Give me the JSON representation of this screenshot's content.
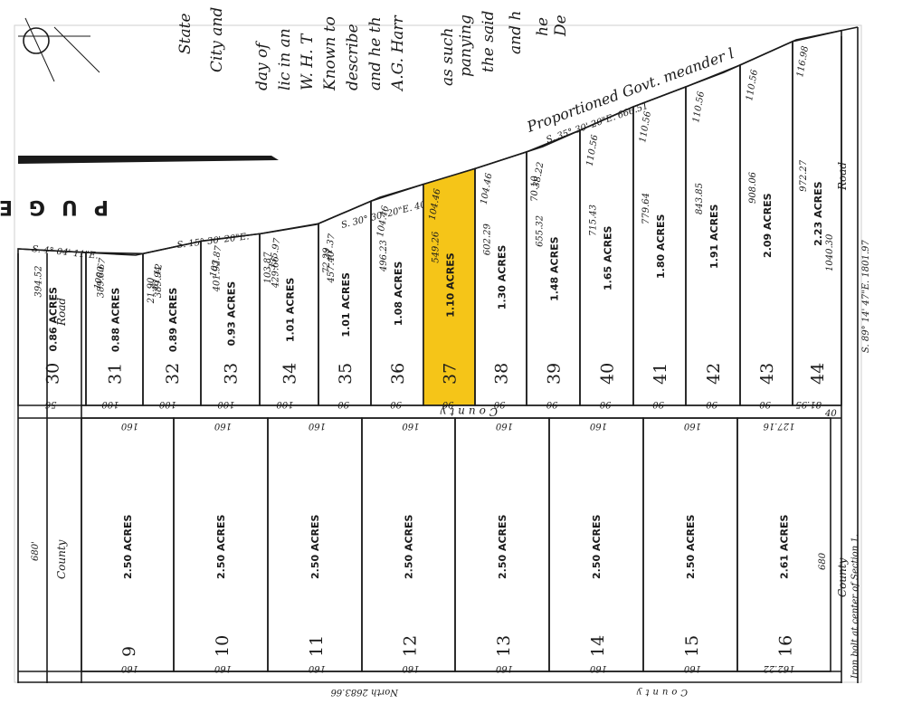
{
  "map": {
    "highlight_color": "#f5c518",
    "ink_color": "#1a1a1a",
    "deed_text_fragments": [
      "State",
      "City and",
      "day of",
      "lic in an",
      "W. H. T",
      "Known to",
      "describe",
      "and he th",
      "A.G. Harr",
      "as such",
      "panying",
      "the said",
      "and h",
      "he",
      "De"
    ],
    "water_label": "PUGET",
    "meander_label": "Proportioned Govt. meander l",
    "bearings": [
      "S. 35° 30' 20\"E.  666.51",
      "S. 30° 30' 20\"E.  403.17",
      "S. 15° 30' 20\"E.",
      "S. 4° 04' 11\"E."
    ],
    "upper_lots": [
      {
        "num": "30",
        "acres": "0.86 ACRES",
        "depth": "394.52",
        "front": "",
        "back": "56"
      },
      {
        "num": "31",
        "acres": "0.88 ACRES",
        "depth": "389.80",
        "front": "100.67",
        "back": "100"
      },
      {
        "num": "32",
        "acres": "0.89 ACRES",
        "depth": "389.94",
        "front": "81.12",
        "back": "100",
        "extra": "21.90"
      },
      {
        "num": "33",
        "acres": "0.93 ACRES",
        "depth": "401.92",
        "front": "103.87",
        "back": "100"
      },
      {
        "num": "34",
        "acres": "1.01 ACRES",
        "depth": "429.66",
        "front": "335.97",
        "back": "100",
        "extra": "103.87"
      },
      {
        "num": "35",
        "acres": "1.01 ACRES",
        "depth": "457.40",
        "front": "31.37",
        "back": "90",
        "extra": "72.29"
      },
      {
        "num": "36",
        "acres": "1.08 ACRES",
        "depth": "496.23",
        "front": "104.46",
        "back": "90"
      },
      {
        "num": "37",
        "acres": "1.10 ACRES",
        "depth": "549.26",
        "front": "104.46",
        "back": "90"
      },
      {
        "num": "38",
        "acres": "1.30 ACRES",
        "depth": "602.29",
        "front": "104.46",
        "back": "90"
      },
      {
        "num": "39",
        "acres": "1.48 ACRES",
        "depth": "655.32",
        "front": "38.22",
        "back": "90",
        "extra": "70.10"
      },
      {
        "num": "40",
        "acres": "1.65 ACRES",
        "depth": "715.43",
        "front": "110.56",
        "back": "90"
      },
      {
        "num": "41",
        "acres": "1.80 ACRES",
        "depth": "779.64",
        "front": "110.56",
        "back": "90"
      },
      {
        "num": "42",
        "acres": "1.91 ACRES",
        "depth": "843.85",
        "front": "110.56",
        "back": "90"
      },
      {
        "num": "43",
        "acres": "2.09 ACRES",
        "depth": "908.06",
        "front": "110.56",
        "back": "90"
      },
      {
        "num": "44",
        "acres": "2.23 ACRES",
        "depth": "972.27",
        "front": "116.98",
        "back": "81.95"
      }
    ],
    "right_depth": "1040.30",
    "road_label": "Road",
    "bottom_line_label": "S. 89° 14' 47\"E. 1801.97",
    "county_road_label": "County",
    "left_road_label": "Road",
    "left_strip_labels": {
      "top": "60",
      "width": "680'"
    },
    "lower_lots": [
      {
        "num": "9",
        "acres": "2.50 ACRES",
        "top": "160",
        "bottom": "160"
      },
      {
        "num": "10",
        "acres": "2.50 ACRES",
        "top": "160",
        "bottom": "160"
      },
      {
        "num": "11",
        "acres": "2.50 ACRES",
        "top": "160",
        "bottom": "160"
      },
      {
        "num": "12",
        "acres": "2.50 ACRES",
        "top": "160",
        "bottom": "160"
      },
      {
        "num": "13",
        "acres": "2.50 ACRES",
        "top": "160",
        "bottom": "160"
      },
      {
        "num": "14",
        "acres": "2.50 ACRES",
        "top": "160",
        "bottom": "160"
      },
      {
        "num": "15",
        "acres": "2.50 ACRES",
        "top": "160",
        "bottom": "160"
      },
      {
        "num": "16",
        "acres": "2.61 ACRES",
        "top": "127.16",
        "bottom": "162.22"
      }
    ],
    "lower_depth": "680",
    "county_right": "County",
    "section_note": "Iron bolt at center of Section 1.",
    "bottom_road": "County",
    "north_line": "North 2683.66",
    "corner_label": "40"
  }
}
